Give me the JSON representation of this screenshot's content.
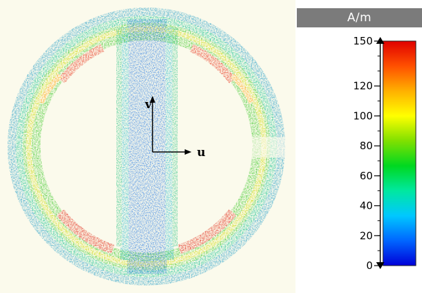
{
  "legend": {
    "unit_label": "A/m",
    "min": 0,
    "max": 150,
    "ticks": [
      150,
      120,
      100,
      80,
      60,
      40,
      20,
      0
    ],
    "colors": [
      "#0000d8",
      "#0066ff",
      "#00c8ff",
      "#00e8a0",
      "#00d820",
      "#80e000",
      "#ffff00",
      "#ffb000",
      "#ff5000",
      "#e00000"
    ]
  },
  "plot": {
    "axis_u_label": "u",
    "axis_v_label": "v",
    "background": "#fbfaec"
  }
}
